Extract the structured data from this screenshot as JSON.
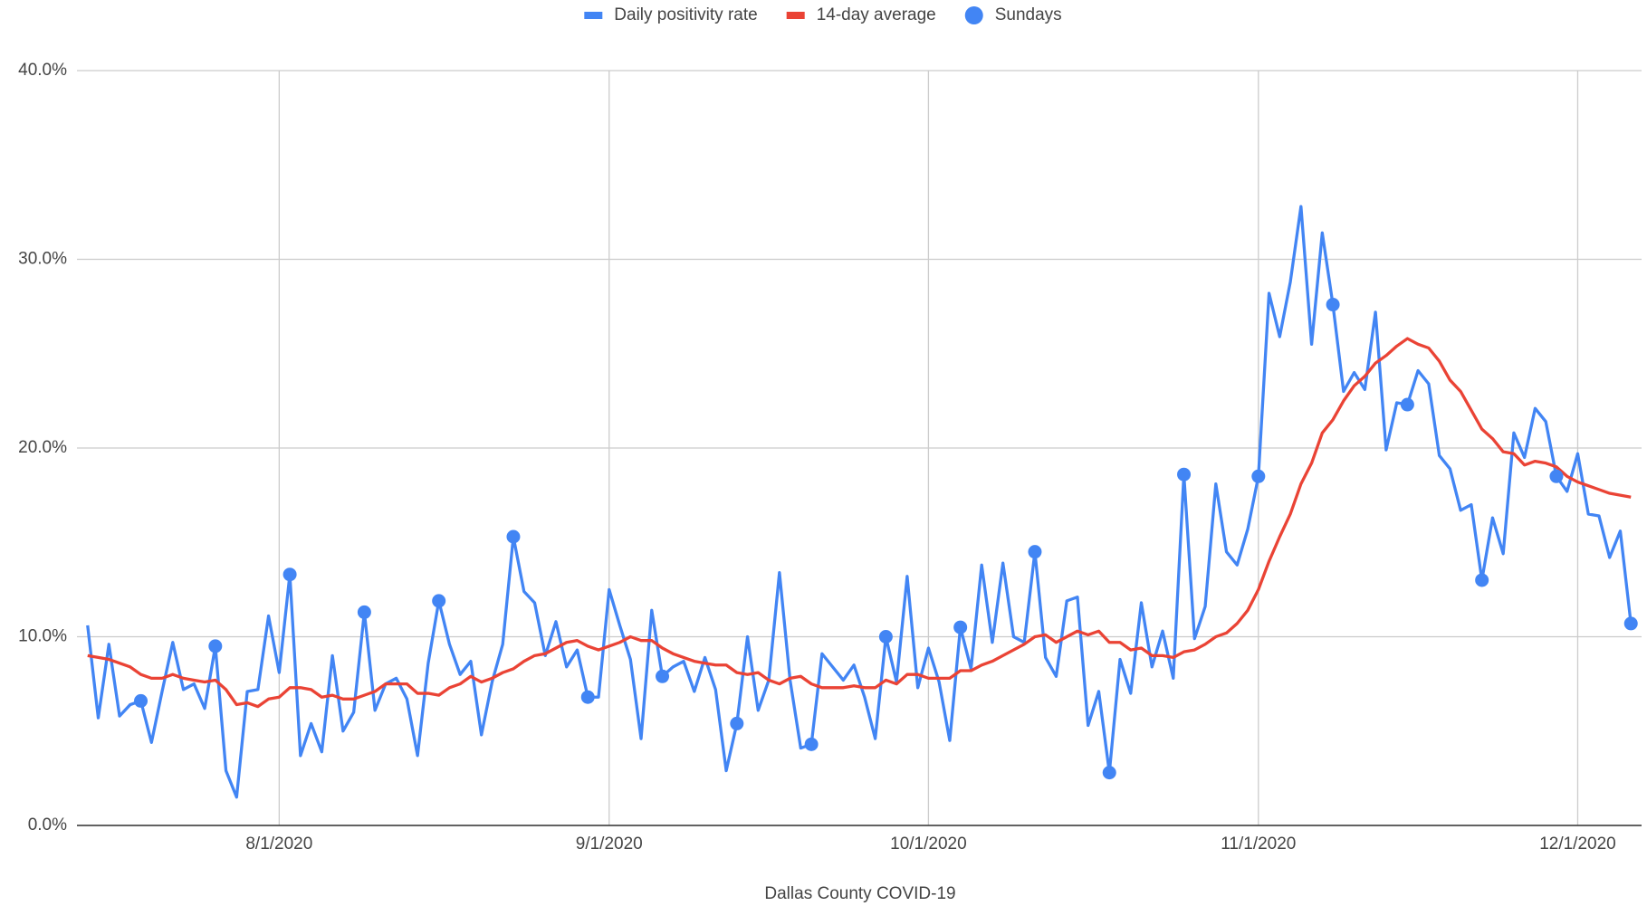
{
  "chart_data": {
    "type": "line",
    "title": "Dallas County COVID-19",
    "x": [
      "7/14/2020",
      "7/15/2020",
      "7/16/2020",
      "7/17/2020",
      "7/18/2020",
      "7/19/2020",
      "7/20/2020",
      "7/21/2020",
      "7/22/2020",
      "7/23/2020",
      "7/24/2020",
      "7/25/2020",
      "7/26/2020",
      "7/27/2020",
      "7/28/2020",
      "7/29/2020",
      "7/30/2020",
      "7/31/2020",
      "8/1/2020",
      "8/2/2020",
      "8/3/2020",
      "8/4/2020",
      "8/5/2020",
      "8/6/2020",
      "8/7/2020",
      "8/8/2020",
      "8/9/2020",
      "8/10/2020",
      "8/11/2020",
      "8/12/2020",
      "8/13/2020",
      "8/14/2020",
      "8/15/2020",
      "8/16/2020",
      "8/17/2020",
      "8/18/2020",
      "8/19/2020",
      "8/20/2020",
      "8/21/2020",
      "8/22/2020",
      "8/23/2020",
      "8/24/2020",
      "8/25/2020",
      "8/26/2020",
      "8/27/2020",
      "8/28/2020",
      "8/29/2020",
      "8/30/2020",
      "8/31/2020",
      "9/1/2020",
      "9/2/2020",
      "9/3/2020",
      "9/4/2020",
      "9/5/2020",
      "9/6/2020",
      "9/7/2020",
      "9/8/2020",
      "9/9/2020",
      "9/10/2020",
      "9/11/2020",
      "9/12/2020",
      "9/13/2020",
      "9/14/2020",
      "9/15/2020",
      "9/16/2020",
      "9/17/2020",
      "9/18/2020",
      "9/19/2020",
      "9/20/2020",
      "9/21/2020",
      "9/22/2020",
      "9/23/2020",
      "9/24/2020",
      "9/25/2020",
      "9/26/2020",
      "9/27/2020",
      "9/28/2020",
      "9/29/2020",
      "9/30/2020",
      "10/1/2020",
      "10/2/2020",
      "10/3/2020",
      "10/4/2020",
      "10/5/2020",
      "10/6/2020",
      "10/7/2020",
      "10/8/2020",
      "10/9/2020",
      "10/10/2020",
      "10/11/2020",
      "10/12/2020",
      "10/13/2020",
      "10/14/2020",
      "10/15/2020",
      "10/16/2020",
      "10/17/2020",
      "10/18/2020",
      "10/19/2020",
      "10/20/2020",
      "10/21/2020",
      "10/22/2020",
      "10/23/2020",
      "10/24/2020",
      "10/25/2020",
      "10/26/2020",
      "10/27/2020",
      "10/28/2020",
      "10/29/2020",
      "10/30/2020",
      "10/31/2020",
      "11/1/2020",
      "11/2/2020",
      "11/3/2020",
      "11/4/2020",
      "11/5/2020",
      "11/6/2020",
      "11/7/2020",
      "11/8/2020",
      "11/9/2020",
      "11/10/2020",
      "11/11/2020",
      "11/12/2020",
      "11/13/2020",
      "11/14/2020",
      "11/15/2020",
      "11/16/2020",
      "11/17/2020",
      "11/18/2020",
      "11/19/2020",
      "11/20/2020",
      "11/21/2020",
      "11/22/2020",
      "11/23/2020",
      "11/24/2020",
      "11/25/2020",
      "11/26/2020",
      "11/27/2020",
      "11/28/2020",
      "11/29/2020",
      "11/30/2020",
      "12/1/2020",
      "12/2/2020",
      "12/3/2020",
      "12/4/2020",
      "12/5/2020",
      "12/6/2020"
    ],
    "series": [
      {
        "name": "Daily positivity rate",
        "color": "#4285f4",
        "values": [
          10.6,
          5.7,
          9.6,
          5.8,
          6.4,
          6.6,
          4.4,
          7.1,
          9.7,
          7.2,
          7.5,
          6.2,
          9.5,
          2.9,
          1.5,
          7.1,
          7.2,
          11.1,
          8.1,
          13.3,
          3.7,
          5.4,
          3.9,
          9.0,
          5.0,
          6.0,
          11.3,
          6.1,
          7.5,
          7.8,
          6.7,
          3.7,
          8.6,
          11.9,
          9.6,
          8.0,
          8.7,
          4.8,
          7.6,
          9.6,
          15.3,
          12.4,
          11.8,
          9.0,
          10.8,
          8.4,
          9.3,
          6.8,
          6.8,
          12.5,
          10.6,
          8.8,
          4.6,
          11.4,
          7.9,
          8.4,
          8.7,
          7.1,
          8.9,
          7.2,
          2.9,
          5.4,
          10.0,
          6.1,
          7.7,
          13.4,
          7.7,
          4.1,
          4.3,
          9.1,
          8.4,
          7.7,
          8.5,
          6.8,
          4.6,
          10.0,
          7.6,
          13.2,
          7.3,
          9.4,
          7.6,
          4.5,
          10.5,
          8.3,
          13.8,
          9.7,
          13.9,
          10.0,
          9.7,
          14.5,
          8.9,
          7.9,
          11.9,
          12.1,
          5.3,
          7.1,
          2.8,
          8.8,
          7.0,
          11.8,
          8.4,
          10.3,
          7.8,
          18.6,
          9.9,
          11.6,
          18.1,
          14.5,
          13.8,
          15.7,
          18.5,
          28.2,
          25.9,
          28.8,
          32.8,
          25.5,
          31.4,
          27.6,
          23.0,
          24.0,
          23.1,
          27.2,
          19.9,
          22.4,
          22.3,
          24.1,
          23.4,
          19.6,
          18.9,
          16.7,
          17.0,
          13.0,
          16.3,
          14.4,
          20.8,
          19.5,
          22.1,
          21.4,
          18.5,
          17.7,
          19.7,
          16.5,
          16.4,
          14.2,
          15.6,
          10.7
        ]
      },
      {
        "name": "14-day average",
        "color": "#ea4335",
        "values": [
          9.0,
          8.9,
          8.8,
          8.6,
          8.4,
          8.0,
          7.8,
          7.8,
          8.0,
          7.8,
          7.7,
          7.6,
          7.7,
          7.2,
          6.4,
          6.5,
          6.3,
          6.7,
          6.8,
          7.3,
          7.3,
          7.2,
          6.8,
          6.9,
          6.7,
          6.7,
          6.9,
          7.1,
          7.5,
          7.5,
          7.5,
          7.0,
          7.0,
          6.9,
          7.3,
          7.5,
          7.9,
          7.6,
          7.8,
          8.1,
          8.3,
          8.7,
          9.0,
          9.1,
          9.4,
          9.7,
          9.8,
          9.5,
          9.3,
          9.5,
          9.7,
          10.0,
          9.8,
          9.8,
          9.4,
          9.1,
          8.9,
          8.7,
          8.6,
          8.5,
          8.5,
          8.1,
          8.0,
          8.1,
          7.7,
          7.5,
          7.8,
          7.9,
          7.5,
          7.3,
          7.3,
          7.3,
          7.4,
          7.3,
          7.3,
          7.7,
          7.5,
          8.0,
          8.0,
          7.8,
          7.8,
          7.8,
          8.2,
          8.2,
          8.5,
          8.7,
          9.0,
          9.3,
          9.6,
          10.0,
          10.1,
          9.7,
          10.0,
          10.3,
          10.1,
          10.3,
          9.7,
          9.7,
          9.3,
          9.4,
          9.0,
          9.0,
          8.9,
          9.2,
          9.3,
          9.6,
          10.0,
          10.2,
          10.7,
          11.4,
          12.5,
          14.0,
          15.3,
          16.5,
          18.1,
          19.2,
          20.8,
          21.5,
          22.5,
          23.3,
          23.8,
          24.5,
          24.9,
          25.4,
          25.8,
          25.5,
          25.3,
          24.6,
          23.6,
          23.0,
          22.0,
          21.0,
          20.5,
          19.8,
          19.7,
          19.1,
          19.3,
          19.2,
          19.0,
          18.5,
          18.2,
          18.0,
          17.8,
          17.6,
          17.5,
          17.4
        ]
      },
      {
        "name": "Sundays",
        "color": "#4285f4",
        "type": "scatter",
        "values": [
          null,
          null,
          null,
          null,
          null,
          6.6,
          null,
          null,
          null,
          null,
          null,
          null,
          9.5,
          null,
          null,
          null,
          null,
          null,
          null,
          13.3,
          null,
          null,
          null,
          null,
          null,
          null,
          11.3,
          null,
          null,
          null,
          null,
          null,
          null,
          11.9,
          null,
          null,
          null,
          null,
          null,
          null,
          15.3,
          null,
          null,
          null,
          null,
          null,
          null,
          6.8,
          null,
          null,
          null,
          null,
          null,
          null,
          7.9,
          null,
          null,
          null,
          null,
          null,
          null,
          5.4,
          null,
          null,
          null,
          null,
          null,
          null,
          4.3,
          null,
          null,
          null,
          null,
          null,
          null,
          10.0,
          null,
          null,
          null,
          null,
          null,
          null,
          10.5,
          null,
          null,
          null,
          null,
          null,
          null,
          14.5,
          null,
          null,
          null,
          null,
          null,
          null,
          2.8,
          null,
          null,
          null,
          null,
          null,
          null,
          18.6,
          null,
          null,
          null,
          null,
          null,
          null,
          18.5,
          null,
          null,
          null,
          null,
          null,
          null,
          27.6,
          null,
          null,
          null,
          null,
          null,
          null,
          22.3,
          null,
          null,
          null,
          null,
          null,
          null,
          13.0,
          null,
          null,
          null,
          null,
          null,
          null,
          18.5,
          null,
          null,
          null,
          null,
          null,
          null,
          10.7
        ]
      }
    ],
    "xlim": [
      "7/13/2020",
      "12/7/2020"
    ],
    "xticks": [
      "8/1/2020",
      "9/1/2020",
      "10/1/2020",
      "11/1/2020",
      "12/1/2020"
    ],
    "ylim": [
      0,
      40
    ],
    "yticks": [
      {
        "value": 0,
        "label": "0.0%"
      },
      {
        "value": 10,
        "label": "10.0%"
      },
      {
        "value": 20,
        "label": "20.0%"
      },
      {
        "value": 30,
        "label": "30.0%"
      },
      {
        "value": 40,
        "label": "40.0%"
      }
    ],
    "grid": true,
    "legend": "top"
  }
}
